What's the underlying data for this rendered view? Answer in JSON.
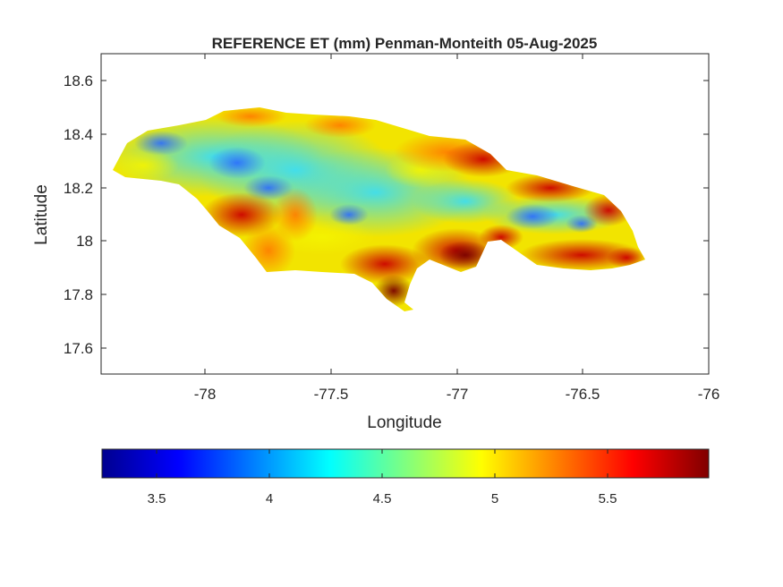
{
  "figure": {
    "title": "REFERENCE ET (mm) Penman-Monteith 05-Aug-2025",
    "xlabel": "Longitude",
    "ylabel": "Latitude"
  },
  "map": {
    "region": "Jamaica",
    "xlim": [
      -78.4,
      -76.0
    ],
    "ylim": [
      17.5,
      18.7
    ],
    "xticks": [
      "-78",
      "-77.5",
      "-77",
      "-76.5",
      "-76"
    ],
    "yticks": [
      "17.6",
      "17.8",
      "18",
      "18.2",
      "18.4",
      "18.6"
    ],
    "colormap": "jet",
    "color_range": [
      3.27,
      5.95
    ]
  },
  "colorbar": {
    "ticks": [
      "3.5",
      "4",
      "4.5",
      "5",
      "5.5"
    ],
    "colors": [
      "#00008f",
      "#0000ff",
      "#00ffff",
      "#ffff00",
      "#ff0000",
      "#800000"
    ]
  }
}
